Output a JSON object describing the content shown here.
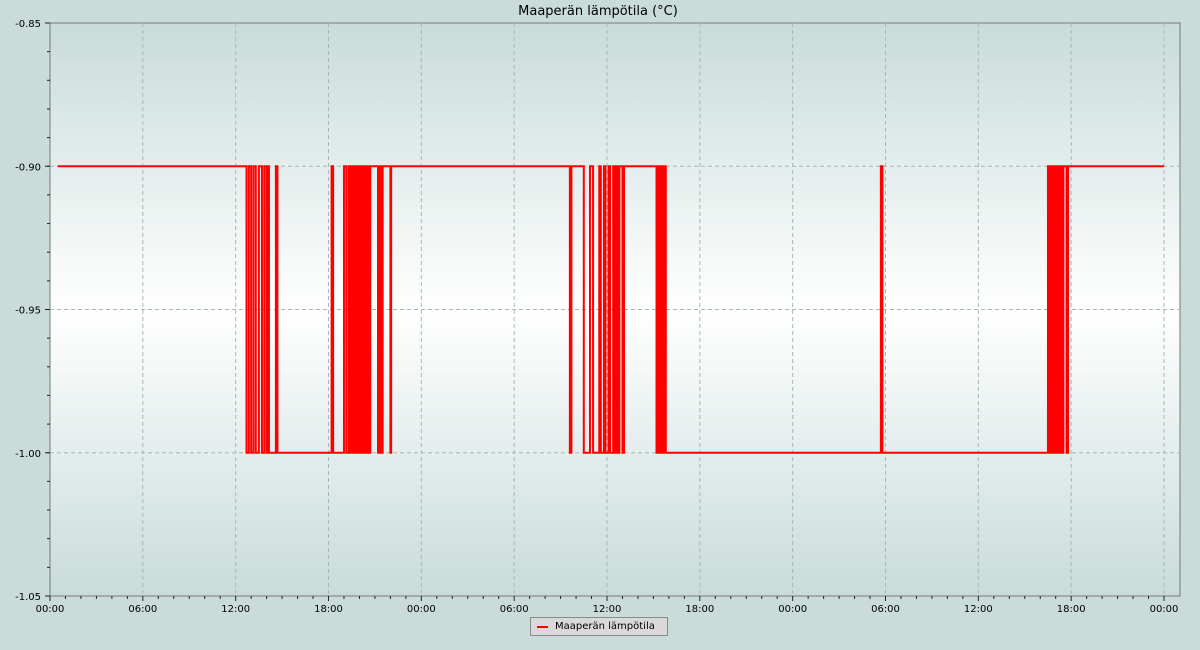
{
  "chart_data": {
    "type": "line",
    "title": "Maaperän lämpötila (°C)",
    "xlabel": "",
    "ylabel": "",
    "ylim": [
      -1.05,
      -0.85
    ],
    "y_ticks": [
      "-0.85",
      "-0.90",
      "-0.95",
      "-1.00",
      "-1.05"
    ],
    "x_ticks": [
      "00:00",
      "06:00",
      "12:00",
      "18:00",
      "00:00",
      "06:00",
      "12:00",
      "18:00",
      "00:00",
      "06:00",
      "12:00",
      "18:00",
      "00:00"
    ],
    "x_unit": "hours from start of first day",
    "x_range": [
      0,
      72
    ],
    "grid": true,
    "legend_placement": "bottom-center",
    "line_color": "#ff0000",
    "series": [
      {
        "name": "Maaperän lämpötila",
        "points": [
          [
            0.5,
            -0.9
          ],
          [
            12.7,
            -0.9
          ],
          [
            12.7,
            -1.0
          ],
          [
            12.85,
            -1.0
          ],
          [
            12.85,
            -0.9
          ],
          [
            13.0,
            -0.9
          ],
          [
            13.0,
            -1.0
          ],
          [
            13.15,
            -1.0
          ],
          [
            13.15,
            -0.9
          ],
          [
            13.3,
            -0.9
          ],
          [
            13.3,
            -1.0
          ],
          [
            13.5,
            -1.0
          ],
          [
            13.5,
            -0.9
          ],
          [
            13.7,
            -0.9
          ],
          [
            13.7,
            -1.0
          ],
          [
            13.85,
            -1.0
          ],
          [
            13.85,
            -0.9
          ],
          [
            14.0,
            -0.9
          ],
          [
            14.0,
            -1.0
          ],
          [
            14.1,
            -1.0
          ],
          [
            14.1,
            -0.9
          ],
          [
            14.15,
            -0.9
          ],
          [
            14.15,
            -1.0
          ],
          [
            14.6,
            -1.0
          ],
          [
            14.6,
            -0.9
          ],
          [
            14.7,
            -0.9
          ],
          [
            14.7,
            -1.0
          ],
          [
            18.2,
            -1.0
          ],
          [
            18.2,
            -0.9
          ],
          [
            18.3,
            -0.9
          ],
          [
            18.3,
            -1.0
          ],
          [
            19.0,
            -1.0
          ],
          [
            19.0,
            -0.9
          ],
          [
            19.15,
            -0.9
          ],
          [
            19.15,
            -1.0
          ],
          [
            19.3,
            -1.0
          ],
          [
            19.3,
            -0.9
          ],
          [
            19.4,
            -0.9
          ],
          [
            19.4,
            -1.0
          ],
          [
            19.5,
            -1.0
          ],
          [
            19.5,
            -0.9
          ],
          [
            19.6,
            -0.9
          ],
          [
            19.6,
            -1.0
          ],
          [
            19.7,
            -1.0
          ],
          [
            19.7,
            -0.9
          ],
          [
            19.8,
            -0.9
          ],
          [
            19.8,
            -1.0
          ],
          [
            19.9,
            -1.0
          ],
          [
            19.9,
            -0.9
          ],
          [
            20.0,
            -0.9
          ],
          [
            20.0,
            -1.0
          ],
          [
            20.1,
            -1.0
          ],
          [
            20.1,
            -0.9
          ],
          [
            20.2,
            -0.9
          ],
          [
            20.2,
            -1.0
          ],
          [
            20.3,
            -1.0
          ],
          [
            20.3,
            -0.9
          ],
          [
            20.4,
            -0.9
          ],
          [
            20.4,
            -1.0
          ],
          [
            20.5,
            -1.0
          ],
          [
            20.5,
            -0.9
          ],
          [
            20.6,
            -0.9
          ],
          [
            20.6,
            -1.0
          ],
          [
            20.7,
            -1.0
          ],
          [
            20.7,
            -0.9
          ],
          [
            21.2,
            -0.9
          ],
          [
            21.2,
            -1.0
          ],
          [
            21.3,
            -1.0
          ],
          [
            21.3,
            -0.9
          ],
          [
            21.4,
            -0.9
          ],
          [
            21.4,
            -1.0
          ],
          [
            21.5,
            -1.0
          ],
          [
            21.5,
            -0.9
          ],
          [
            22.0,
            -0.9
          ],
          [
            22.0,
            -1.0
          ],
          [
            22.05,
            -1.0
          ],
          [
            22.05,
            -0.9
          ],
          [
            33.6,
            -0.9
          ],
          [
            33.6,
            -1.0
          ],
          [
            33.7,
            -1.0
          ],
          [
            33.7,
            -0.9
          ],
          [
            34.5,
            -0.9
          ],
          [
            34.5,
            -1.0
          ],
          [
            34.9,
            -1.0
          ],
          [
            34.9,
            -0.9
          ],
          [
            35.1,
            -0.9
          ],
          [
            35.1,
            -1.0
          ],
          [
            35.5,
            -1.0
          ],
          [
            35.5,
            -0.9
          ],
          [
            35.6,
            -0.9
          ],
          [
            35.6,
            -1.0
          ],
          [
            35.8,
            -1.0
          ],
          [
            35.8,
            -0.9
          ],
          [
            35.9,
            -0.9
          ],
          [
            35.9,
            -1.0
          ],
          [
            36.1,
            -1.0
          ],
          [
            36.1,
            -0.9
          ],
          [
            36.2,
            -0.9
          ],
          [
            36.2,
            -1.0
          ],
          [
            36.4,
            -1.0
          ],
          [
            36.4,
            -0.9
          ],
          [
            36.5,
            -0.9
          ],
          [
            36.5,
            -1.0
          ],
          [
            36.6,
            -1.0
          ],
          [
            36.6,
            -0.9
          ],
          [
            36.7,
            -0.9
          ],
          [
            36.7,
            -1.0
          ],
          [
            36.8,
            -1.0
          ],
          [
            36.8,
            -0.9
          ],
          [
            37.0,
            -0.9
          ],
          [
            37.0,
            -1.0
          ],
          [
            37.1,
            -1.0
          ],
          [
            37.1,
            -0.9
          ],
          [
            39.2,
            -0.9
          ],
          [
            39.2,
            -1.0
          ],
          [
            39.3,
            -1.0
          ],
          [
            39.3,
            -0.9
          ],
          [
            39.4,
            -0.9
          ],
          [
            39.4,
            -1.0
          ],
          [
            39.5,
            -1.0
          ],
          [
            39.5,
            -0.9
          ],
          [
            39.6,
            -0.9
          ],
          [
            39.6,
            -1.0
          ],
          [
            39.7,
            -1.0
          ],
          [
            39.7,
            -0.9
          ],
          [
            39.8,
            -0.9
          ],
          [
            39.8,
            -1.0
          ],
          [
            53.7,
            -1.0
          ],
          [
            53.7,
            -0.9
          ],
          [
            53.8,
            -0.9
          ],
          [
            53.8,
            -1.0
          ],
          [
            64.5,
            -1.0
          ],
          [
            64.5,
            -0.9
          ],
          [
            64.6,
            -0.9
          ],
          [
            64.6,
            -1.0
          ],
          [
            64.7,
            -1.0
          ],
          [
            64.7,
            -0.9
          ],
          [
            64.8,
            -0.9
          ],
          [
            64.8,
            -1.0
          ],
          [
            64.9,
            -1.0
          ],
          [
            64.9,
            -0.9
          ],
          [
            65.0,
            -0.9
          ],
          [
            65.0,
            -1.0
          ],
          [
            65.1,
            -1.0
          ],
          [
            65.1,
            -0.9
          ],
          [
            65.2,
            -0.9
          ],
          [
            65.2,
            -1.0
          ],
          [
            65.3,
            -1.0
          ],
          [
            65.3,
            -0.9
          ],
          [
            65.4,
            -0.9
          ],
          [
            65.4,
            -1.0
          ],
          [
            65.5,
            -1.0
          ],
          [
            65.5,
            -0.9
          ],
          [
            65.7,
            -0.9
          ],
          [
            65.7,
            -1.0
          ],
          [
            65.8,
            -1.0
          ],
          [
            65.8,
            -0.9
          ],
          [
            72.0,
            -0.9
          ]
        ]
      }
    ]
  }
}
